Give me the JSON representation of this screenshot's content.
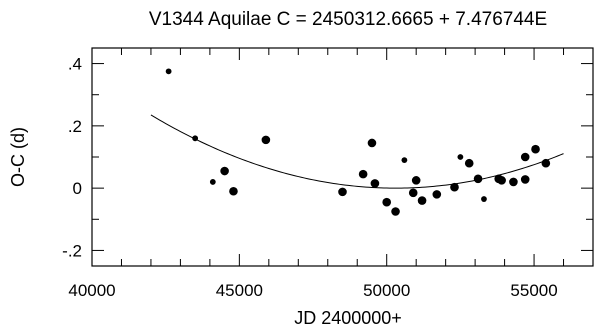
{
  "chart_data": {
    "type": "scatter",
    "title": "V1344 Aquilae   C = 2450312.6665 + 7.476744E",
    "xlabel": "JD 2400000+",
    "ylabel": "O-C (d)",
    "xlim": [
      40000,
      57000
    ],
    "ylim": [
      -0.25,
      0.45
    ],
    "xticks": [
      40000,
      45000,
      50000,
      55000
    ],
    "xtick_labels": [
      "40000",
      "45000",
      "50000",
      "55000"
    ],
    "yticks": [
      -0.2,
      0,
      0.2,
      0.4
    ],
    "ytick_labels": [
      "-.2",
      "0",
      ".2",
      ".4"
    ],
    "grid": false,
    "series": [
      {
        "points": [
          {
            "x": 42600,
            "y": 0.375,
            "size": "small"
          },
          {
            "x": 43500,
            "y": 0.16,
            "size": "small"
          },
          {
            "x": 44100,
            "y": 0.02,
            "size": "small"
          },
          {
            "x": 44500,
            "y": 0.055,
            "size": "large"
          },
          {
            "x": 44800,
            "y": -0.01,
            "size": "large"
          },
          {
            "x": 45900,
            "y": 0.155,
            "size": "large"
          },
          {
            "x": 48500,
            "y": -0.012,
            "size": "large"
          },
          {
            "x": 49200,
            "y": 0.045,
            "size": "large"
          },
          {
            "x": 49500,
            "y": 0.145,
            "size": "large"
          },
          {
            "x": 49600,
            "y": 0.015,
            "size": "large"
          },
          {
            "x": 50000,
            "y": -0.045,
            "size": "large"
          },
          {
            "x": 50300,
            "y": -0.075,
            "size": "large"
          },
          {
            "x": 50600,
            "y": 0.09,
            "size": "small"
          },
          {
            "x": 50900,
            "y": -0.015,
            "size": "large"
          },
          {
            "x": 51000,
            "y": 0.025,
            "size": "large"
          },
          {
            "x": 51200,
            "y": -0.04,
            "size": "large"
          },
          {
            "x": 51700,
            "y": -0.02,
            "size": "large"
          },
          {
            "x": 52300,
            "y": 0.003,
            "size": "large"
          },
          {
            "x": 52500,
            "y": 0.1,
            "size": "small"
          },
          {
            "x": 52800,
            "y": 0.08,
            "size": "large"
          },
          {
            "x": 53100,
            "y": 0.03,
            "size": "large"
          },
          {
            "x": 53300,
            "y": -0.035,
            "size": "small"
          },
          {
            "x": 53800,
            "y": 0.03,
            "size": "large"
          },
          {
            "x": 53900,
            "y": 0.025,
            "size": "large"
          },
          {
            "x": 54300,
            "y": 0.02,
            "size": "large"
          },
          {
            "x": 54700,
            "y": 0.1,
            "size": "large"
          },
          {
            "x": 54700,
            "y": 0.028,
            "size": "large"
          },
          {
            "x": 55050,
            "y": 0.125,
            "size": "large"
          },
          {
            "x": 55400,
            "y": 0.08,
            "size": "large"
          }
        ]
      }
    ],
    "fit": {
      "type": "quadratic",
      "x_range": [
        42000,
        56000
      ],
      "vertex_x": 50300,
      "vertex_y": 0.0,
      "y_at_42000": 0.235
    }
  }
}
